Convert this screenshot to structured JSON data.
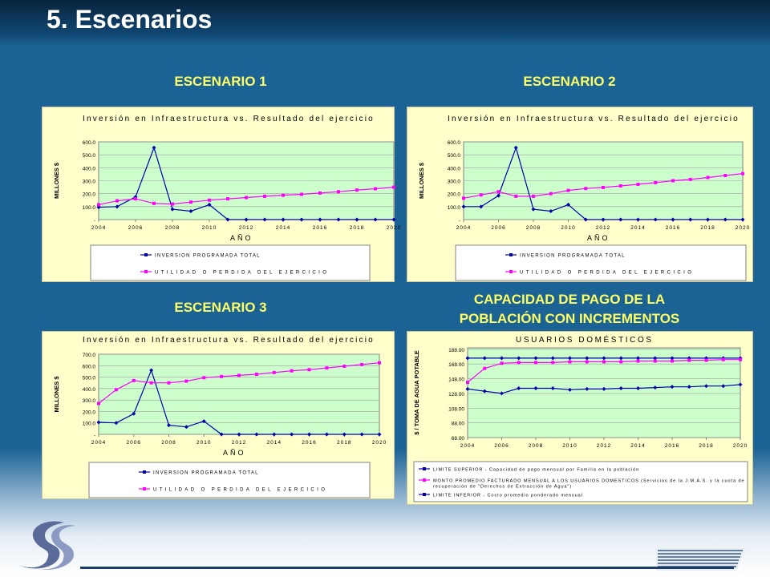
{
  "slide": {
    "title": "5. Escenarios",
    "headings": {
      "scenario1": "ESCENARIO 1",
      "scenario2": "ESCENARIO 2",
      "scenario3": "ESCENARIO 3",
      "capacity_line1": "CAPACIDAD DE PAGO DE LA",
      "capacity_line2": "POBLACIÓN CON INCREMENTOS"
    },
    "colors": {
      "background": "#1a6394",
      "heading": "#ffff66",
      "plot_fill": "#ccffcc",
      "panel_fill": "#ffffcc",
      "series_blue": "#0000aa",
      "series_magenta": "#ff00ff"
    }
  },
  "chart_data": [
    {
      "type": "line",
      "title": "Inversión en Infraestructura vs. Resultado del ejercicio",
      "xlabel": "AÑO",
      "ylabel": "MILLONES $",
      "x": [
        2004,
        2005,
        2006,
        2007,
        2008,
        2009,
        2010,
        2011,
        2012,
        2013,
        2014,
        2015,
        2016,
        2017,
        2018,
        2019,
        2020
      ],
      "xticks": [
        2004,
        2006,
        2008,
        2010,
        2012,
        2014,
        2016,
        2018,
        2020
      ],
      "ylim": [
        0,
        600
      ],
      "yticks": [
        0,
        100,
        200,
        300,
        400,
        500,
        600
      ],
      "ytick_labels": [
        "-",
        "100.0",
        "200.0",
        "300.0",
        "400.0",
        "500.0",
        "600.0"
      ],
      "series": [
        {
          "name": "INVERSION PROGRAMADA TOTAL",
          "color": "#0000aa",
          "values": [
            95,
            100,
            175,
            555,
            80,
            65,
            115,
            0,
            0,
            0,
            0,
            0,
            0,
            0,
            0,
            0,
            0
          ]
        },
        {
          "name": "UTILIDAD O PERDIDA DEL EJERCICIO",
          "color": "#ff00ff",
          "values": [
            115,
            145,
            160,
            125,
            120,
            135,
            150,
            160,
            170,
            180,
            188,
            195,
            205,
            215,
            228,
            238,
            250
          ]
        }
      ],
      "legend": "bottom"
    },
    {
      "type": "line",
      "title": "Inversión en Infraestructura vs. Resultado del ejercicio",
      "xlabel": "AÑO",
      "ylabel": "MILLONES $",
      "x": [
        2004,
        2005,
        2006,
        2007,
        2008,
        2009,
        2010,
        2011,
        2012,
        2013,
        2014,
        2015,
        2016,
        2017,
        2018,
        2019,
        2020
      ],
      "xticks": [
        2004,
        2006,
        2008,
        2010,
        2012,
        2014,
        2016,
        2018,
        2020
      ],
      "ylim": [
        0,
        600
      ],
      "yticks": [
        0,
        100,
        200,
        300,
        400,
        500,
        600
      ],
      "ytick_labels": [
        "-",
        "100.0",
        "200.0",
        "300.0",
        "400.0",
        "500.0",
        "600.0"
      ],
      "series": [
        {
          "name": "INVERSION PROGRAMADA TOTAL",
          "color": "#0000aa",
          "values": [
            100,
            100,
            185,
            555,
            80,
            65,
            115,
            0,
            0,
            0,
            0,
            0,
            0,
            0,
            0,
            0,
            0
          ]
        },
        {
          "name": "UTILIDAD O PERDIDA DEL EJERCICIO",
          "color": "#ff00ff",
          "values": [
            165,
            190,
            215,
            180,
            180,
            200,
            225,
            240,
            248,
            260,
            272,
            285,
            300,
            310,
            325,
            340,
            355
          ]
        }
      ],
      "legend": "bottom"
    },
    {
      "type": "line",
      "title": "Inversión en Infraestructura vs. Resultado del ejercicio",
      "xlabel": "AÑO",
      "ylabel": "MILLONES $",
      "x": [
        2004,
        2005,
        2006,
        2007,
        2008,
        2009,
        2010,
        2011,
        2012,
        2013,
        2014,
        2015,
        2016,
        2017,
        2018,
        2019,
        2020
      ],
      "xticks": [
        2004,
        2006,
        2008,
        2010,
        2012,
        2014,
        2016,
        2018,
        2020
      ],
      "ylim": [
        0,
        700
      ],
      "yticks": [
        0,
        100,
        200,
        300,
        400,
        500,
        600,
        700
      ],
      "ytick_labels": [
        "-",
        "100.0",
        "200.0",
        "300.0",
        "400.0",
        "500.0",
        "600.0",
        "700.0"
      ],
      "series": [
        {
          "name": "INVERSION PROGRAMADA TOTAL",
          "color": "#0000aa",
          "values": [
            105,
            100,
            180,
            560,
            80,
            65,
            115,
            0,
            0,
            0,
            0,
            0,
            0,
            0,
            0,
            0,
            0
          ]
        },
        {
          "name": "UTILIDAD O PERDIDA DEL EJERCICIO",
          "color": "#ff00ff",
          "values": [
            270,
            390,
            470,
            450,
            450,
            465,
            495,
            505,
            515,
            525,
            540,
            555,
            565,
            580,
            595,
            610,
            625
          ]
        }
      ],
      "legend": "bottom"
    },
    {
      "type": "line",
      "title": "USUARIOS DOMÉSTICOS",
      "xlabel": "",
      "ylabel": "$ / TOMA DE AGUA POTABLE",
      "x": [
        2004,
        2005,
        2006,
        2007,
        2008,
        2009,
        2010,
        2011,
        2012,
        2013,
        2014,
        2015,
        2016,
        2017,
        2018,
        2019,
        2020
      ],
      "xticks": [
        2004,
        2006,
        2008,
        2010,
        2012,
        2014,
        2016,
        2018,
        2020
      ],
      "ylim": [
        68,
        190
      ],
      "yticks": [
        68,
        88,
        108,
        128,
        148,
        168,
        188
      ],
      "ytick_labels": [
        "68.00",
        "88.00",
        "108.00",
        "128.00",
        "148.00",
        "168.00",
        "188.00"
      ],
      "series": [
        {
          "name": "LIMITE SUPERIOR - Capacidad de pago mensual por Familia en la población",
          "color": "#0000aa",
          "values": [
            176,
            176,
            176,
            176,
            176,
            176,
            176,
            176,
            176,
            176,
            176,
            176,
            176,
            176,
            176,
            176,
            176
          ]
        },
        {
          "name": "MONTO PROMEDIO FACTURADO MENSUAL A LOS USUARIOS DOMESTICOS (Servicios de la J.M.A.S. y la cuota de recuperación de \"Derechos de Extracción de Agua\")",
          "color": "#ff00ff",
          "values": [
            143,
            162,
            169,
            170,
            170,
            170,
            171,
            171,
            171,
            171,
            172,
            172,
            172,
            173,
            173,
            174,
            174
          ]
        },
        {
          "name": "LIMITE INFERIOR - Costo promedio ponderado mensual",
          "color": "#0000aa",
          "values": [
            134,
            131,
            128,
            135,
            135,
            135,
            133,
            134,
            134,
            135,
            135,
            136,
            137,
            137,
            138,
            138,
            140
          ]
        }
      ],
      "legend": "bottom"
    }
  ]
}
